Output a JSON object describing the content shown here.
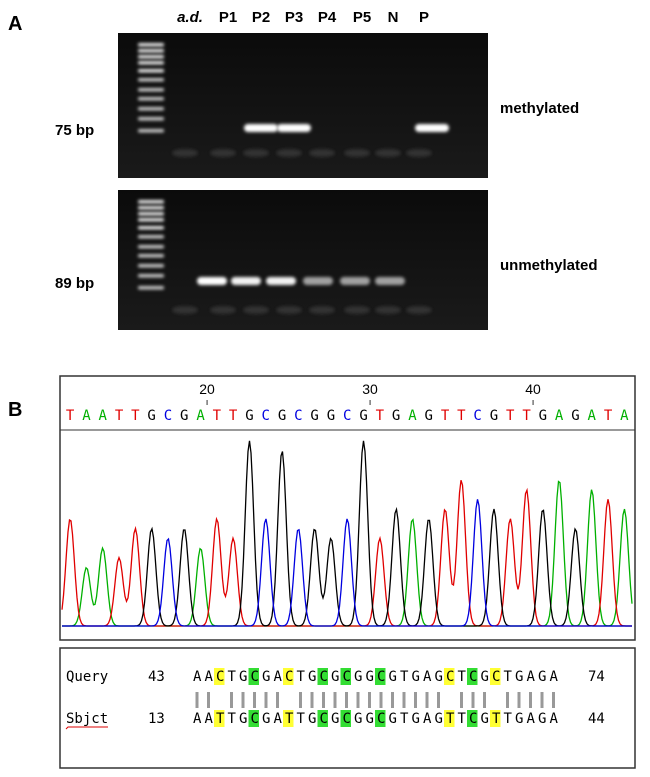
{
  "panel_a": {
    "label": "A",
    "lanes": [
      "a.d.",
      "P1",
      "P2",
      "P3",
      "P4",
      "P5",
      "N",
      "P"
    ],
    "gels": [
      {
        "size_label": "75 bp",
        "status": "methylated"
      },
      {
        "size_label": "89 bp",
        "status": "unmethylated"
      }
    ]
  },
  "panel_b": {
    "label": "B",
    "positions": [
      20,
      30,
      40
    ],
    "sequence": [
      "T",
      "A",
      "A",
      "T",
      "T",
      "G",
      "C",
      "G",
      "A",
      "T",
      "T",
      "G",
      "C",
      "G",
      "C",
      "G",
      "G",
      "C",
      "G",
      "T",
      "G",
      "A",
      "G",
      "T",
      "T",
      "C",
      "G",
      "T",
      "T",
      "G",
      "A",
      "G",
      "A",
      "T",
      "A"
    ],
    "base_colors": {
      "A": "#00b000",
      "T": "#e00000",
      "G": "#000000",
      "C": "#0000e0"
    },
    "alignment": {
      "query": {
        "name": "Query",
        "start": 43,
        "end": 74,
        "segments": [
          {
            "text": "AA"
          },
          {
            "text": "C",
            "highlight": "#ffff33"
          },
          {
            "text": "TG"
          },
          {
            "text": "C",
            "highlight": "#33dd33"
          },
          {
            "text": "GA"
          },
          {
            "text": "C",
            "highlight": "#ffff33"
          },
          {
            "text": "TG"
          },
          {
            "text": "C",
            "highlight": "#33dd33"
          },
          {
            "text": "G"
          },
          {
            "text": "C",
            "highlight": "#33dd33"
          },
          {
            "text": "GG"
          },
          {
            "text": "C",
            "highlight": "#33dd33"
          },
          {
            "text": "GTGAG"
          },
          {
            "text": "C",
            "highlight": "#ffff33"
          },
          {
            "text": "T"
          },
          {
            "text": "C",
            "highlight": "#33dd33"
          },
          {
            "text": "G"
          },
          {
            "text": "C",
            "highlight": "#ffff33"
          },
          {
            "text": "TGAGA"
          }
        ]
      },
      "subject": {
        "name": "Sbjct",
        "start": 13,
        "end": 44,
        "segments": [
          {
            "text": "AA"
          },
          {
            "text": "T",
            "highlight": "#ffff33"
          },
          {
            "text": "TG"
          },
          {
            "text": "C",
            "highlight": "#33dd33"
          },
          {
            "text": "GA"
          },
          {
            "text": "T",
            "highlight": "#ffff33"
          },
          {
            "text": "TG"
          },
          {
            "text": "C",
            "highlight": "#33dd33"
          },
          {
            "text": "G"
          },
          {
            "text": "C",
            "highlight": "#33dd33"
          },
          {
            "text": "GG"
          },
          {
            "text": "C",
            "highlight": "#33dd33"
          },
          {
            "text": "GTGAG"
          },
          {
            "text": "T",
            "highlight": "#ffff33"
          },
          {
            "text": "T"
          },
          {
            "text": "C",
            "highlight": "#33dd33"
          },
          {
            "text": "G"
          },
          {
            "text": "T",
            "highlight": "#ffff33"
          },
          {
            "text": "TGAGA"
          }
        ]
      }
    }
  }
}
